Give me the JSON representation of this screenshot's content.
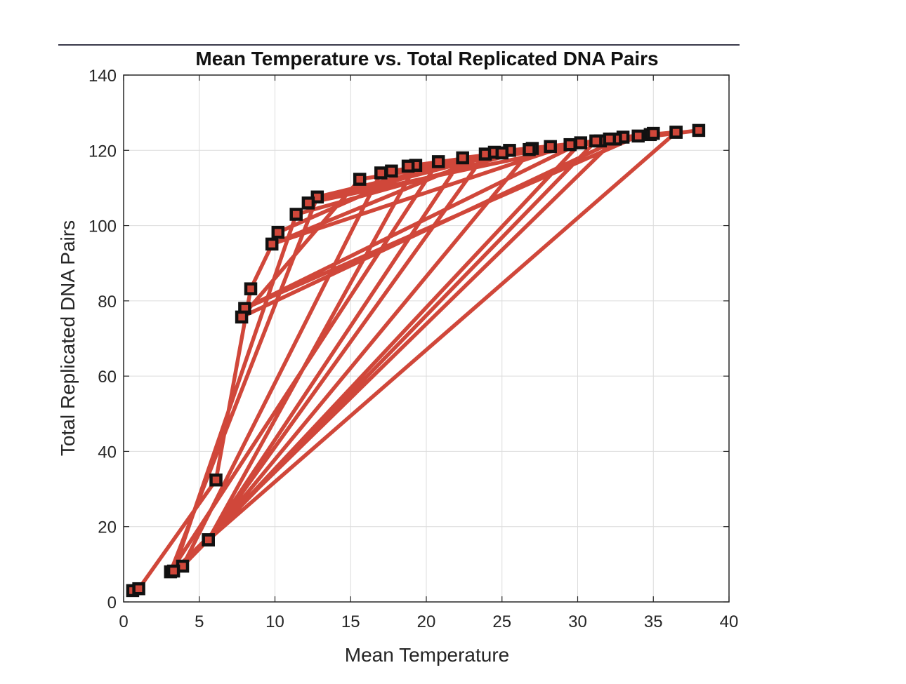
{
  "chart_data": {
    "type": "line",
    "title": "Mean Temperature vs. Total Replicated DNA Pairs",
    "xlabel": "Mean Temperature",
    "ylabel": "Total Replicated DNA Pairs",
    "xlim": [
      0,
      40
    ],
    "ylim": [
      0,
      140
    ],
    "xticks": [
      0,
      5,
      10,
      15,
      20,
      25,
      30,
      35,
      40
    ],
    "yticks": [
      0,
      20,
      40,
      60,
      80,
      100,
      120,
      140
    ],
    "grid": true,
    "legend": "none",
    "colors": {
      "line": "#d0473a",
      "marker_edge": "#111111",
      "marker_face": "#d0473a"
    },
    "series": [
      {
        "marker": "square",
        "x": [
          0.6,
          1.0,
          6.1,
          8.4,
          10.2,
          20.8,
          3.1,
          12.8,
          25.5,
          31.5,
          34.0,
          8.0,
          30.2,
          5.6,
          23.9,
          31.2,
          3.9,
          17.0,
          33.0,
          7.8,
          15.6,
          29.5,
          9.8,
          24.5,
          32.5,
          3.3,
          11.4,
          27.0,
          5.6,
          19.3,
          32.1,
          12.2,
          25.0,
          34.8,
          36.5,
          17.7,
          28.2,
          36.5,
          5.6,
          22.4,
          38.0,
          18.8,
          26.8,
          35.0
        ],
        "y": [
          3.0,
          3.5,
          32.4,
          83.2,
          98.2,
          117.0,
          8.0,
          107.6,
          120.0,
          122.5,
          123.8,
          78.0,
          122.0,
          16.5,
          119.0,
          122.5,
          9.5,
          114.0,
          123.5,
          75.7,
          112.3,
          121.5,
          95.1,
          119.5,
          123.0,
          8.2,
          103.0,
          120.5,
          16.5,
          116.0,
          123.0,
          106.0,
          119.3,
          124.2,
          124.8,
          114.5,
          121.0,
          124.8,
          16.5,
          118.0,
          125.3,
          115.8,
          120.2,
          124.5
        ]
      }
    ]
  }
}
